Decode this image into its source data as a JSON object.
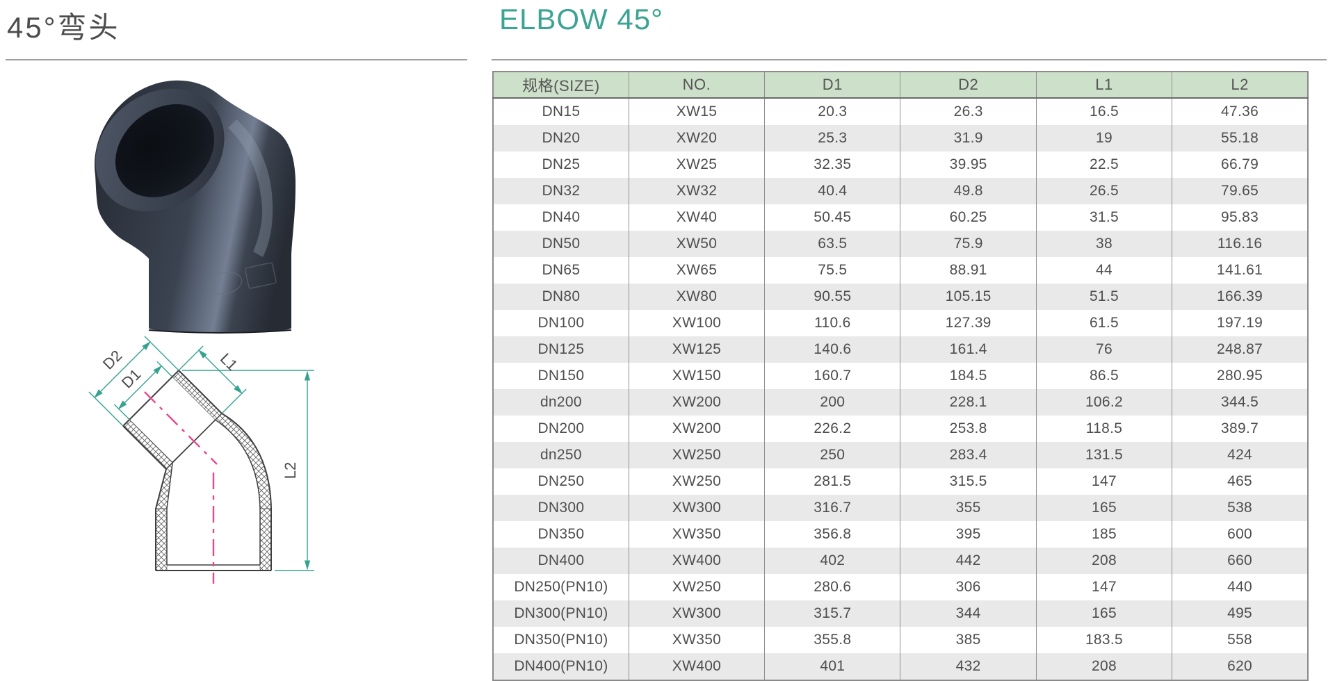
{
  "page": {
    "title_cn": "45°弯头",
    "title_en": "ELBOW 45°"
  },
  "colors": {
    "accent_teal": "#3ba492",
    "header_green": "#cde0ca",
    "row_stripe_gray": "#e9e9e9",
    "table_border_gray": "#8f8f8f",
    "text_gray": "#4d4d4d",
    "centerline_pink": "#e8468c",
    "fitting_dark": "#343b46"
  },
  "diagram": {
    "labels": [
      "D2",
      "D1",
      "L1",
      "L2"
    ]
  },
  "table": {
    "headers": [
      "规格(SIZE)",
      "NO.",
      "D1",
      "D2",
      "L1",
      "L2"
    ],
    "rows": [
      [
        "DN15",
        "XW15",
        "20.3",
        "26.3",
        "16.5",
        "47.36"
      ],
      [
        "DN20",
        "XW20",
        "25.3",
        "31.9",
        "19",
        "55.18"
      ],
      [
        "DN25",
        "XW25",
        "32.35",
        "39.95",
        "22.5",
        "66.79"
      ],
      [
        "DN32",
        "XW32",
        "40.4",
        "49.8",
        "26.5",
        "79.65"
      ],
      [
        "DN40",
        "XW40",
        "50.45",
        "60.25",
        "31.5",
        "95.83"
      ],
      [
        "DN50",
        "XW50",
        "63.5",
        "75.9",
        "38",
        "116.16"
      ],
      [
        "DN65",
        "XW65",
        "75.5",
        "88.91",
        "44",
        "141.61"
      ],
      [
        "DN80",
        "XW80",
        "90.55",
        "105.15",
        "51.5",
        "166.39"
      ],
      [
        "DN100",
        "XW100",
        "110.6",
        "127.39",
        "61.5",
        "197.19"
      ],
      [
        "DN125",
        "XW125",
        "140.6",
        "161.4",
        "76",
        "248.87"
      ],
      [
        "DN150",
        "XW150",
        "160.7",
        "184.5",
        "86.5",
        "280.95"
      ],
      [
        "dn200",
        "XW200",
        "200",
        "228.1",
        "106.2",
        "344.5"
      ],
      [
        "DN200",
        "XW200",
        "226.2",
        "253.8",
        "118.5",
        "389.7"
      ],
      [
        "dn250",
        "XW250",
        "250",
        "283.4",
        "131.5",
        "424"
      ],
      [
        "DN250",
        "XW250",
        "281.5",
        "315.5",
        "147",
        "465"
      ],
      [
        "DN300",
        "XW300",
        "316.7",
        "355",
        "165",
        "538"
      ],
      [
        "DN350",
        "XW350",
        "356.8",
        "395",
        "185",
        "600"
      ],
      [
        "DN400",
        "XW400",
        "402",
        "442",
        "208",
        "660"
      ],
      [
        "DN250(PN10)",
        "XW250",
        "280.6",
        "306",
        "147",
        "440"
      ],
      [
        "DN300(PN10)",
        "XW300",
        "315.7",
        "344",
        "165",
        "495"
      ],
      [
        "DN350(PN10)",
        "XW350",
        "355.8",
        "385",
        "183.5",
        "558"
      ],
      [
        "DN400(PN10)",
        "XW400",
        "401",
        "432",
        "208",
        "620"
      ]
    ]
  }
}
